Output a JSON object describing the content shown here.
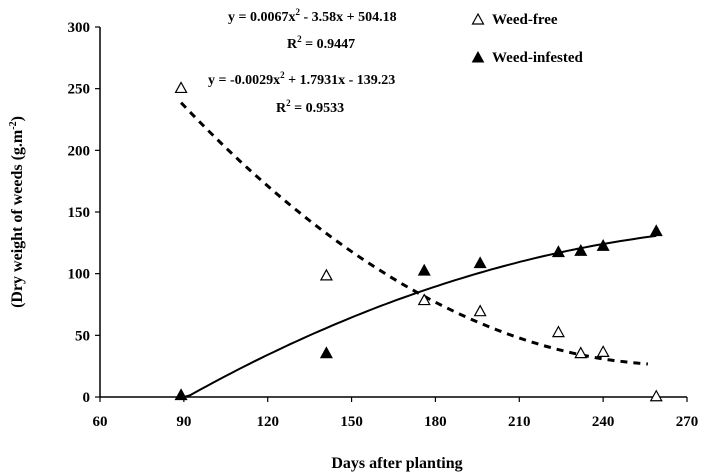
{
  "chart_data": {
    "type": "scatter",
    "xlabel": "Days after planting",
    "ylabel": "(Dry weight of weeds (g.m",
    "ylabel_sup": "-2",
    "ylabel_end": ")",
    "xlim": [
      60,
      270
    ],
    "ylim": [
      0,
      300
    ],
    "xticks": [
      "60",
      "90",
      "120",
      "150",
      "180",
      "210",
      "240",
      "270"
    ],
    "yticks": [
      "0",
      "50",
      "100",
      "150",
      "200",
      "250",
      "300"
    ],
    "grid": false,
    "legend_position": "top-right",
    "series": [
      {
        "name": "Weed-free",
        "marker": "open-triangle",
        "x": [
          89,
          141,
          176,
          196,
          224,
          232,
          240,
          259
        ],
        "y": [
          251,
          99,
          79,
          70,
          53,
          36,
          37,
          1
        ],
        "trend": {
          "type": "polynomial-2",
          "a": 0.0067,
          "b": -3.58,
          "c": 504.18,
          "x_range": [
            89,
            256
          ],
          "line": "dashed",
          "equation": "y = 0.0067x",
          "equation_sup": "2",
          "equation_rest": " - 3.58x + 504.18",
          "r2_label": "R",
          "r2_sup": "2",
          "r2_value": " = 0.9447"
        }
      },
      {
        "name": "Weed-infested",
        "marker": "filled-triangle",
        "x": [
          89,
          141,
          176,
          196,
          224,
          232,
          240,
          259
        ],
        "y": [
          2,
          36,
          103,
          109,
          118,
          119,
          123,
          135
        ],
        "trend": {
          "type": "polynomial-2",
          "a": -0.0029,
          "b": 1.7931,
          "c": -139.23,
          "x_range": [
            90,
            259
          ],
          "line": "solid",
          "equation": "y = -0.0029x",
          "equation_sup": "2",
          "equation_rest": " + 1.7931x - 139.23",
          "r2_label": "R",
          "r2_sup": "2",
          "r2_value": " = 0.9533"
        }
      }
    ]
  },
  "colors": {
    "axis": "#000000",
    "marker": "#000000",
    "background": "#ffffff"
  }
}
